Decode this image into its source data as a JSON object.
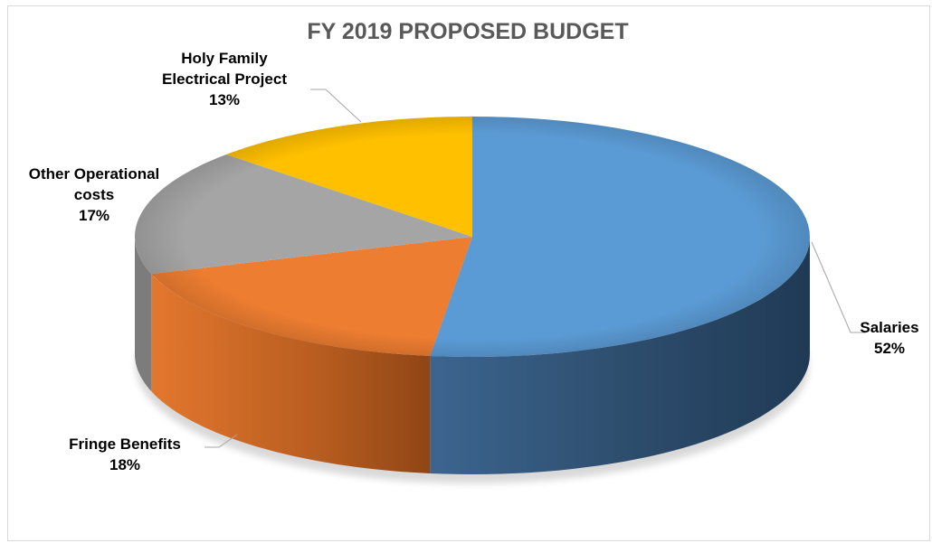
{
  "chart_data": {
    "type": "pie",
    "title": "FY 2019 PROPOSED BUDGET",
    "slices": [
      {
        "name": "Salaries",
        "value": 52,
        "label_lines": [
          "Salaries"
        ],
        "pct_label": "52%",
        "color": "#5b9bd5"
      },
      {
        "name": "Fringe Benefits",
        "value": 18,
        "label_lines": [
          "Fringe Benefits"
        ],
        "pct_label": "18%",
        "color": "#ed7d31"
      },
      {
        "name": "Other Operational costs",
        "value": 17,
        "label_lines": [
          "Other Operational",
          "costs"
        ],
        "pct_label": "17%",
        "color": "#a5a5a5"
      },
      {
        "name": "Holy Family Electrical Project",
        "value": 13,
        "label_lines": [
          "Holy Family",
          "Electrical Project"
        ],
        "pct_label": "13%",
        "color": "#ffc000"
      }
    ],
    "legend": "none",
    "style": "3d"
  }
}
